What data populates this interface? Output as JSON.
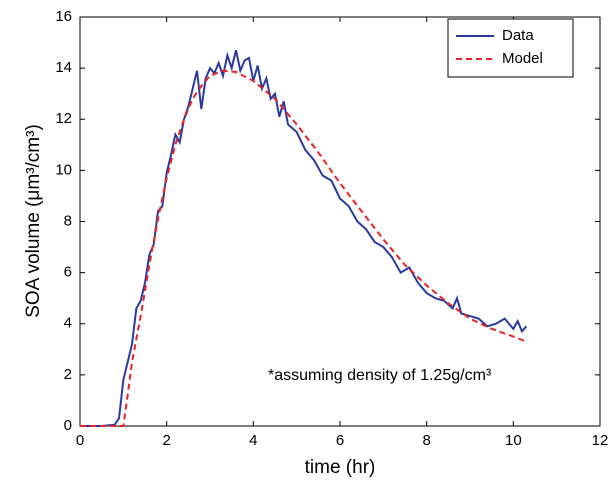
{
  "chart_data": {
    "type": "line",
    "xlabel": "time (hr)",
    "ylabel": "SOA volume (μm³/cm³)",
    "annotation": "*assuming density of 1.25g/cm³",
    "xlim": [
      0,
      12
    ],
    "xticks": [
      0,
      2,
      4,
      6,
      8,
      10,
      12
    ],
    "ylim": [
      0,
      16
    ],
    "yticks": [
      0,
      2,
      4,
      6,
      8,
      10,
      12,
      14,
      16
    ],
    "legend": "upper right",
    "series": [
      {
        "name": "Data",
        "color": "#2b3a9c",
        "linestyle": "solid",
        "x": [
          0,
          0.5,
          0.8,
          0.9,
          1.0,
          1.1,
          1.2,
          1.3,
          1.4,
          1.5,
          1.6,
          1.7,
          1.8,
          1.9,
          2.0,
          2.1,
          2.2,
          2.3,
          2.4,
          2.5,
          2.6,
          2.7,
          2.8,
          2.9,
          3.0,
          3.1,
          3.2,
          3.3,
          3.4,
          3.5,
          3.6,
          3.7,
          3.8,
          3.9,
          4.0,
          4.1,
          4.2,
          4.3,
          4.4,
          4.5,
          4.6,
          4.7,
          4.8,
          5.0,
          5.2,
          5.4,
          5.6,
          5.8,
          6.0,
          6.2,
          6.4,
          6.6,
          6.8,
          7.0,
          7.2,
          7.4,
          7.6,
          7.8,
          8.0,
          8.2,
          8.4,
          8.6,
          8.7,
          8.8,
          9.0,
          9.2,
          9.4,
          9.6,
          9.8,
          10.0,
          10.1,
          10.2,
          10.3
        ],
        "values": [
          0,
          0,
          0.05,
          0.3,
          1.8,
          2.5,
          3.2,
          4.6,
          4.9,
          5.6,
          6.7,
          7.1,
          8.4,
          8.6,
          9.9,
          10.6,
          11.4,
          11.1,
          12.0,
          12.5,
          13.2,
          13.9,
          12.4,
          13.6,
          14.0,
          13.8,
          14.2,
          13.7,
          14.5,
          14.0,
          14.7,
          13.9,
          14.3,
          14.4,
          13.5,
          14.1,
          13.2,
          13.6,
          12.8,
          13.0,
          12.1,
          12.7,
          11.8,
          11.5,
          10.8,
          10.4,
          9.8,
          9.6,
          8.9,
          8.6,
          8.0,
          7.7,
          7.2,
          7.0,
          6.6,
          6.0,
          6.2,
          5.6,
          5.2,
          5.0,
          4.9,
          4.6,
          5.0,
          4.4,
          4.3,
          4.2,
          3.9,
          4.0,
          4.2,
          3.8,
          4.1,
          3.7,
          3.9
        ]
      },
      {
        "name": "Model",
        "color": "#e8232a",
        "linestyle": "dashed",
        "x": [
          0,
          1.0,
          1.1,
          1.2,
          1.4,
          1.6,
          1.8,
          2.0,
          2.2,
          2.4,
          2.6,
          2.8,
          3.0,
          3.3,
          3.6,
          4.0,
          4.5,
          5.0,
          5.5,
          6.0,
          6.5,
          7.0,
          7.5,
          8.0,
          8.5,
          9.0,
          9.5,
          10.0,
          10.3
        ],
        "values": [
          0,
          0,
          1.2,
          2.5,
          4.3,
          6.3,
          8.1,
          9.7,
          11.0,
          12.0,
          12.8,
          13.3,
          13.7,
          13.9,
          13.85,
          13.5,
          12.8,
          11.8,
          10.7,
          9.5,
          8.4,
          7.3,
          6.3,
          5.5,
          4.8,
          4.2,
          3.8,
          3.5,
          3.3
        ]
      }
    ]
  }
}
